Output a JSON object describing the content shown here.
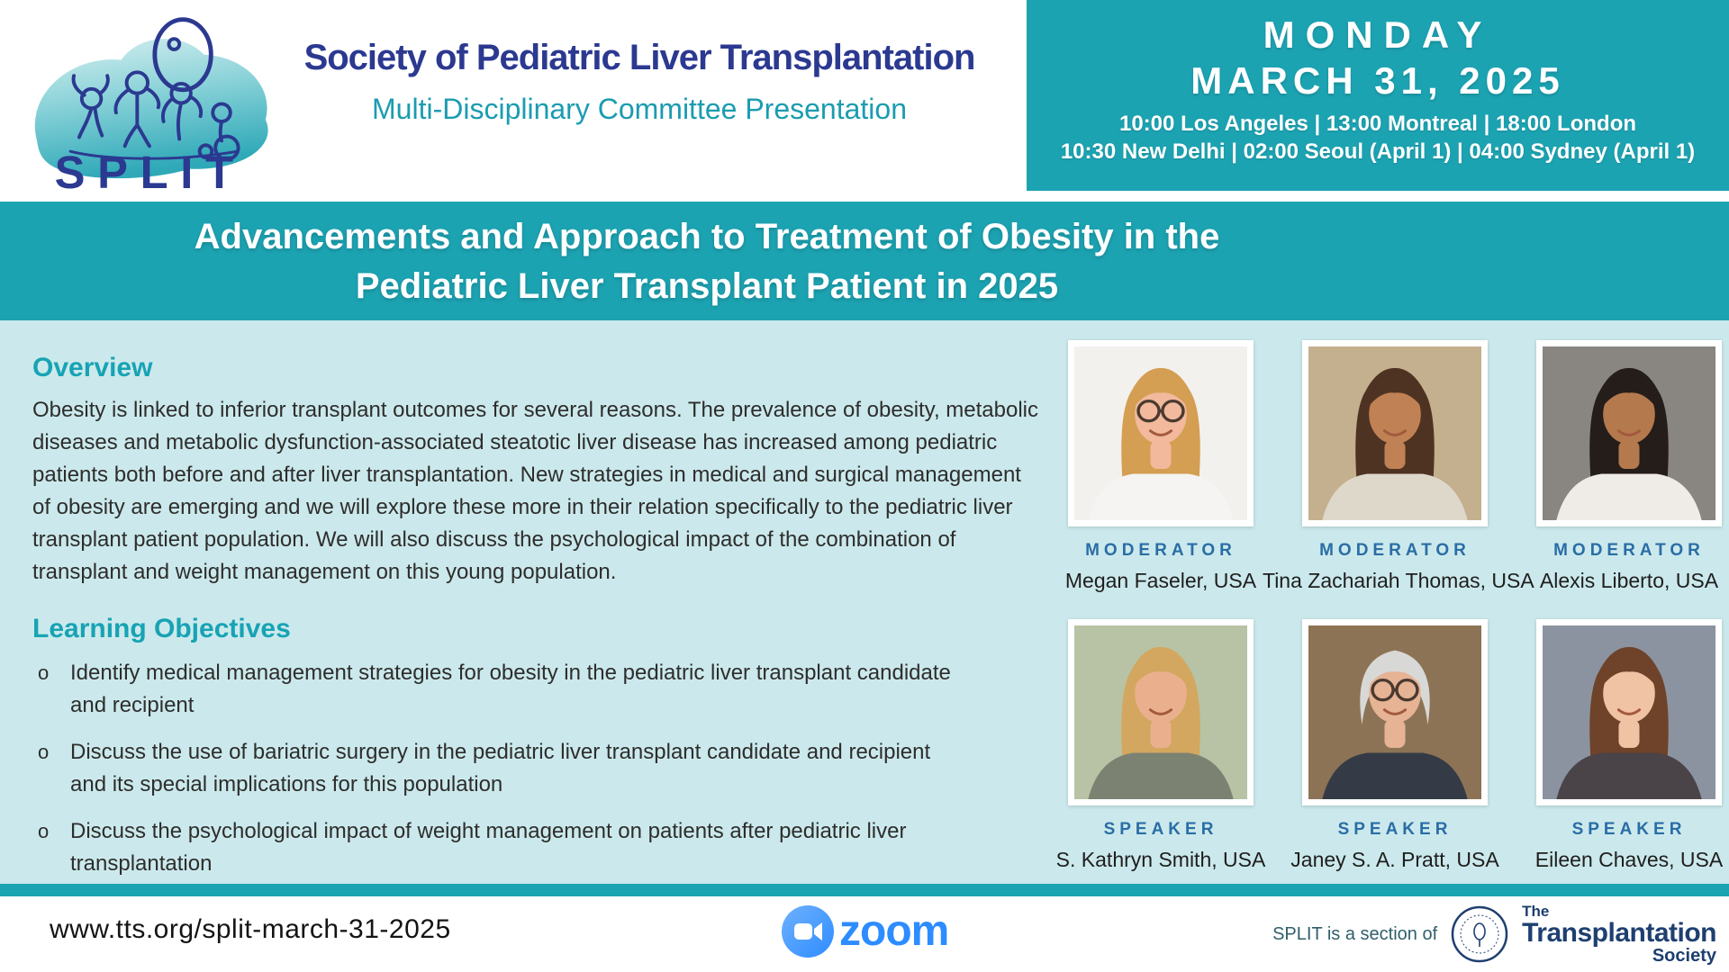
{
  "colors": {
    "teal": "#1CA3B2",
    "light_teal": "#CBE9EC",
    "navy": "#2B3990",
    "subtitle_teal": "#1B9CB0",
    "heading_teal": "#17A3B4",
    "label_blue": "#2A6DA6",
    "text_dark": "#2E2D2C",
    "zoom_blue": "#2D8CFF",
    "tts_navy": "#1E3F70",
    "footer_prefix": "#2F5F6A"
  },
  "header": {
    "logo_text": "SPLIT",
    "title": "Society of Pediatric Liver Transplantation",
    "subtitle": "Multi-Disciplinary Committee Presentation",
    "datebox": {
      "day": "MONDAY",
      "date": "MARCH 31, 2025",
      "times_line1": "10:00 Los Angeles | 13:00 Montreal | 18:00 London",
      "times_line2": "10:30 New Delhi | 02:00 Seoul (April 1) | 04:00 Sydney (April 1)"
    }
  },
  "banner": {
    "title_line1": "Advancements and Approach to Treatment of Obesity in the",
    "title_line2": "Pediatric Liver Transplant Patient in 2025"
  },
  "overview": {
    "heading": "Overview",
    "body": "Obesity is linked to inferior transplant outcomes for several reasons. The prevalence of obesity, metabolic diseases and metabolic dysfunction-associated steatotic liver disease has increased among pediatric patients both before and after liver transplantation. New strategies in medical and surgical management of obesity are emerging and we will explore these more in their relation specifically to the pediatric liver transplant patient population. We will also discuss the psychological impact of the combination of transplant and weight management on this young population."
  },
  "objectives": {
    "heading": "Learning Objectives",
    "marker": "o",
    "items": [
      "Identify medical management strategies for obesity in the pediatric liver transplant candidate and recipient",
      "Discuss the use of bariatric surgery in the pediatric liver transplant candidate and recipient and its special implications for this population",
      "Discuss the psychological impact of weight management on patients after pediatric liver transplantation"
    ]
  },
  "people": [
    {
      "role": "MODERATOR",
      "name": "Megan Faseler, USA",
      "avatar": {
        "bg": "#F3F1EE",
        "hair": "#D49E53",
        "skin": "#F2B99C",
        "top": "#F5F4F2",
        "glasses": true,
        "hair_style": "long"
      }
    },
    {
      "role": "MODERATOR",
      "name": "Tina Zachariah Thomas, USA",
      "avatar": {
        "bg": "#C4AF8E",
        "hair": "#4F3322",
        "skin": "#C08154",
        "top": "#DED8CB",
        "glasses": false,
        "hair_style": "long"
      }
    },
    {
      "role": "MODERATOR",
      "name": "Alexis Liberto, USA",
      "avatar": {
        "bg": "#898581",
        "hair": "#241D19",
        "skin": "#B5794E",
        "top": "#EFECE7",
        "glasses": false,
        "hair_style": "long"
      }
    },
    {
      "role": "SPEAKER",
      "name": "S. Kathryn Smith, USA",
      "avatar": {
        "bg": "#B7C3A4",
        "hair": "#D3A75F",
        "skin": "#EAB08E",
        "top": "#7C8272",
        "glasses": false,
        "hair_style": "long"
      }
    },
    {
      "role": "SPEAKER",
      "name": "Janey S. A. Pratt, USA",
      "avatar": {
        "bg": "#8D7355",
        "hair": "#D8D8D6",
        "skin": "#E6B395",
        "top": "#343B46",
        "glasses": true,
        "hair_style": "short"
      }
    },
    {
      "role": "SPEAKER",
      "name": "Eileen Chaves, USA",
      "avatar": {
        "bg": "#8C93A0",
        "hair": "#6E4329",
        "skin": "#F0C3A4",
        "top": "#4A4348",
        "glasses": false,
        "hair_style": "long"
      }
    }
  ],
  "footer": {
    "url": "www.tts.org/split-march-31-2025",
    "zoom_label": "zoom",
    "tts_prefix": "SPLIT is a section of",
    "tts_the": "The",
    "tts_name": "Transplantation",
    "tts_society": "Society"
  }
}
